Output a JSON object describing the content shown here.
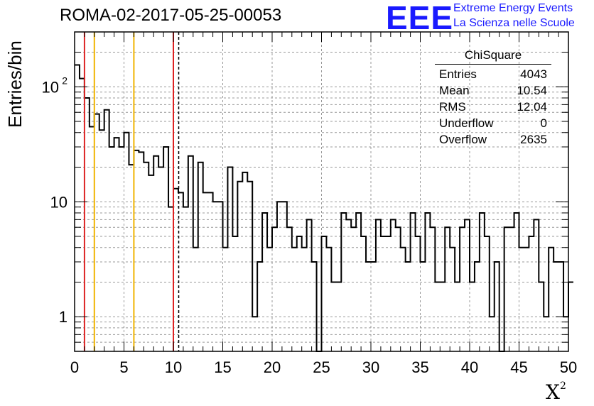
{
  "chart_data": {
    "type": "histogram",
    "title": "ROMA-02-2017-05-25-00053",
    "xlabel": "X",
    "xlabel_superscript": "2",
    "ylabel": "Entries/bin",
    "xlim": [
      0,
      50
    ],
    "ylim": [
      0.5,
      300
    ],
    "yscale": "log",
    "grid": true,
    "bin_width": 0.5,
    "x_ticks": [
      "0",
      "5",
      "10",
      "15",
      "20",
      "25",
      "30",
      "35",
      "40",
      "45",
      "50"
    ],
    "y_ticks": [
      {
        "value": 1,
        "label": "1"
      },
      {
        "value": 10,
        "label": "10"
      },
      {
        "value": 100,
        "label": "10",
        "exponent": "2"
      }
    ],
    "counts": [
      155,
      118,
      80,
      45,
      58,
      42,
      63,
      30,
      36,
      30,
      40,
      21,
      28,
      27,
      22,
      17,
      25,
      20,
      30,
      9,
      13,
      12,
      9,
      25,
      4,
      22,
      12,
      12,
      10,
      10,
      4,
      20,
      5,
      15,
      18,
      15,
      1,
      3,
      8,
      4,
      6,
      10,
      10,
      6,
      4,
      5,
      4,
      7,
      3,
      0,
      5,
      4,
      2,
      2,
      8,
      7,
      6,
      8,
      5,
      3,
      3,
      7,
      5,
      5,
      7,
      6,
      4,
      3,
      8,
      5,
      3,
      8,
      6,
      2,
      2,
      6,
      4,
      2,
      6,
      7,
      2,
      3,
      8,
      5,
      1,
      3,
      0,
      6,
      6,
      8,
      4,
      4,
      5,
      7,
      2,
      1,
      4,
      3,
      3,
      1,
      2
    ],
    "vertical_lines": [
      {
        "x": 1,
        "color": "#dd2222",
        "style": "solid"
      },
      {
        "x": 2,
        "color": "#f0b400",
        "style": "solid"
      },
      {
        "x": 6,
        "color": "#f0b400",
        "style": "solid"
      },
      {
        "x": 10,
        "color": "#dd2222",
        "style": "solid"
      },
      {
        "x": 10.54,
        "color": "#000000",
        "style": "dashed"
      }
    ],
    "stats_box": {
      "title": "ChiSquare",
      "rows": [
        {
          "label": "Entries",
          "value": "4043"
        },
        {
          "label": "Mean",
          "value": "10.54"
        },
        {
          "label": "RMS",
          "value": "12.04"
        },
        {
          "label": "Underflow",
          "value": "0"
        },
        {
          "label": "Overflow",
          "value": "2635"
        }
      ]
    }
  },
  "logo": {
    "mark": "EEE",
    "line1": "Extreme Energy Events",
    "line2": "La Scienza nelle Scuole",
    "color": "#1a1aff"
  }
}
